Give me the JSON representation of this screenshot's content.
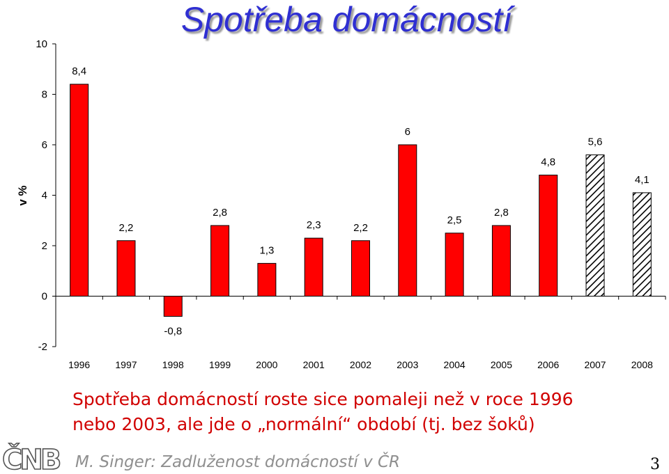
{
  "slide": {
    "title": "Spotřeba domácností",
    "caption_line1": "Spotřeba domácností roste sice pomaleji než v roce 1996",
    "caption_line2": "nebo 2003, ale jde o „normální“ období (tj. bez šoků)",
    "footer": "M. Singer: Zadluženost domácností v ČR",
    "page_number": "3",
    "logo_text": "ČNB"
  },
  "chart_data": {
    "type": "bar",
    "categories": [
      "1996",
      "1997",
      "1998",
      "1999",
      "2000",
      "2001",
      "2002",
      "2003",
      "2004",
      "2005",
      "2006",
      "2007",
      "2008"
    ],
    "values": [
      8.4,
      2.2,
      -0.8,
      2.8,
      1.3,
      2.3,
      2.2,
      6.0,
      2.5,
      2.8,
      4.8,
      5.6,
      4.1
    ],
    "data_labels": [
      "8,4",
      "2,2",
      "-0,8",
      "2,8",
      "1,3",
      "2,3",
      "2,2",
      "6",
      "2,5",
      "2,8",
      "4,8",
      "5,6",
      "4,1"
    ],
    "bar_style": [
      "solid",
      "solid",
      "solid",
      "solid",
      "solid",
      "solid",
      "solid",
      "solid",
      "solid",
      "solid",
      "solid",
      "hatched",
      "hatched"
    ],
    "ylabel": "v %",
    "xlabel": "",
    "ylim": [
      -2,
      10
    ],
    "yticks": [
      -2,
      0,
      2,
      4,
      6,
      8,
      10
    ],
    "grid": false,
    "bar_color": "#ff0000",
    "hatch_color": "#000000"
  },
  "colors": {
    "title": "#2f2fd2",
    "caption": "#d10000",
    "footer": "#8f8f8f"
  }
}
